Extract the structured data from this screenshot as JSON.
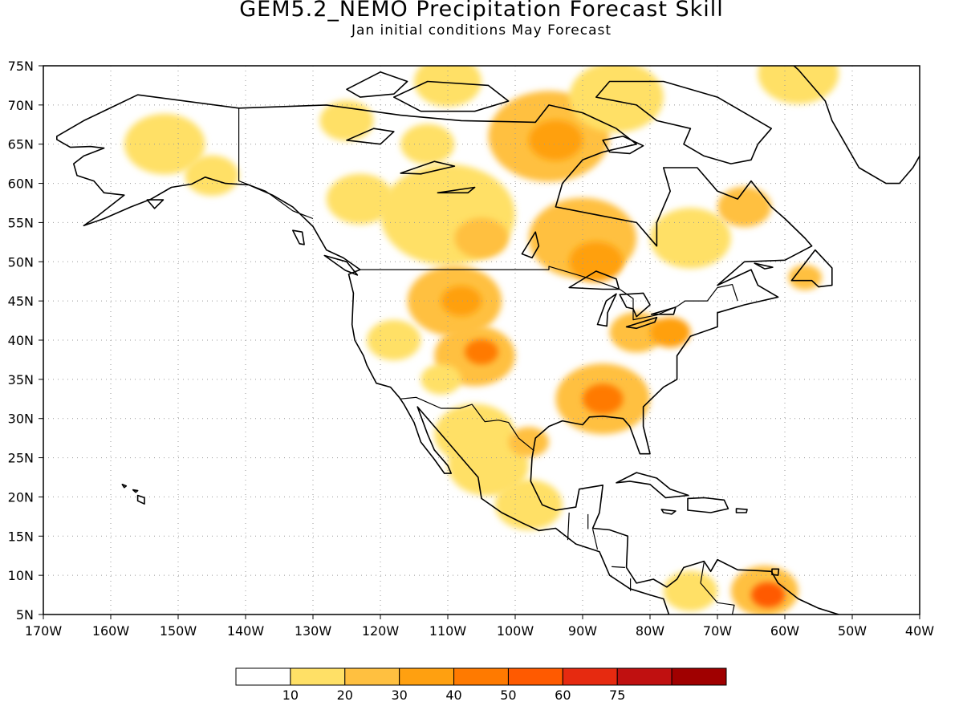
{
  "title": "GEM5.2_NEMO Precipitation Forecast Skill",
  "subtitle": "Jan initial conditions  May Forecast",
  "map": {
    "lon_range": [
      -170,
      -40
    ],
    "lat_range": [
      5,
      75
    ],
    "lat_ticks": [
      "5N",
      "10N",
      "15N",
      "20N",
      "25N",
      "30N",
      "35N",
      "40N",
      "45N",
      "50N",
      "55N",
      "60N",
      "65N",
      "70N",
      "75N"
    ],
    "lon_ticks": [
      "170W",
      "160W",
      "150W",
      "140W",
      "130W",
      "120W",
      "110W",
      "100W",
      "90W",
      "80W",
      "70W",
      "60W",
      "50W",
      "40W"
    ],
    "grid": "dotted",
    "coastline_color": "#000000",
    "skill_regions": [
      {
        "name": "alaska-west",
        "lon": -152,
        "lat": 65,
        "r": 6,
        "level": 1
      },
      {
        "name": "alaska-south",
        "lon": -145,
        "lat": 61,
        "r": 4,
        "level": 1
      },
      {
        "name": "yukon-north",
        "lon": -125,
        "lat": 68,
        "r": 4,
        "level": 1
      },
      {
        "name": "nw-territories",
        "lon": -113,
        "lat": 65,
        "r": 4,
        "level": 1
      },
      {
        "name": "keewatin",
        "lon": -95,
        "lat": 66,
        "r": 9,
        "level": 2
      },
      {
        "name": "keewatin-core",
        "lon": -94,
        "lat": 65.5,
        "r": 4,
        "level": 3
      },
      {
        "name": "arctic-islands",
        "lon": -85,
        "lat": 71,
        "r": 7,
        "level": 1
      },
      {
        "name": "arctic-north",
        "lon": -110,
        "lat": 73,
        "r": 5,
        "level": 1
      },
      {
        "name": "greenland-east",
        "lon": -58,
        "lat": 74,
        "r": 6,
        "level": 1
      },
      {
        "name": "bc-north",
        "lon": -123,
        "lat": 58,
        "r": 5,
        "level": 1
      },
      {
        "name": "alberta",
        "lon": -110,
        "lat": 56,
        "r": 10,
        "level": 1
      },
      {
        "name": "alberta-core",
        "lon": -105,
        "lat": 53,
        "r": 4,
        "level": 2
      },
      {
        "name": "manitoba-ont",
        "lon": -90,
        "lat": 53,
        "r": 8,
        "level": 2
      },
      {
        "name": "ontario-core",
        "lon": -88,
        "lat": 50,
        "r": 4,
        "level": 3
      },
      {
        "name": "quebec",
        "lon": -74,
        "lat": 53,
        "r": 6,
        "level": 1
      },
      {
        "name": "labrador",
        "lon": -66,
        "lat": 57,
        "r": 4,
        "level": 2
      },
      {
        "name": "newfoundland",
        "lon": -57,
        "lat": 48,
        "r": 2.5,
        "level": 2
      },
      {
        "name": "montana",
        "lon": -109,
        "lat": 45,
        "r": 7,
        "level": 2
      },
      {
        "name": "montana-core",
        "lon": -108,
        "lat": 45,
        "r": 3,
        "level": 3
      },
      {
        "name": "colorado",
        "lon": -106,
        "lat": 38,
        "r": 6,
        "level": 2
      },
      {
        "name": "colorado-core",
        "lon": -105,
        "lat": 38.5,
        "r": 2.5,
        "level": 4
      },
      {
        "name": "nevada",
        "lon": -118,
        "lat": 40,
        "r": 4,
        "level": 1
      },
      {
        "name": "arizona",
        "lon": -111,
        "lat": 35,
        "r": 3,
        "level": 1
      },
      {
        "name": "great-lakes-east",
        "lon": -82,
        "lat": 41,
        "r": 4,
        "level": 2
      },
      {
        "name": "pennsylvania",
        "lon": -77,
        "lat": 41,
        "r": 3,
        "level": 3
      },
      {
        "name": "southeast",
        "lon": -87,
        "lat": 32.5,
        "r": 7,
        "level": 2
      },
      {
        "name": "alabama-core",
        "lon": -87,
        "lat": 32.5,
        "r": 3,
        "level": 4
      },
      {
        "name": "mexico-north",
        "lon": -106,
        "lat": 28,
        "r": 6,
        "level": 1
      },
      {
        "name": "mexico-central",
        "lon": -104,
        "lat": 24,
        "r": 6,
        "level": 1
      },
      {
        "name": "texas-coast",
        "lon": -98,
        "lat": 27,
        "r": 3,
        "level": 2
      },
      {
        "name": "mexico-south",
        "lon": -98,
        "lat": 19,
        "r": 5,
        "level": 1
      },
      {
        "name": "colombia",
        "lon": -74,
        "lat": 8,
        "r": 4,
        "level": 1
      },
      {
        "name": "venezuela",
        "lon": -63,
        "lat": 8,
        "r": 5,
        "level": 2
      },
      {
        "name": "venezuela-core",
        "lon": -62.5,
        "lat": 7.5,
        "r": 2.5,
        "level": 5
      }
    ]
  },
  "colorbar": {
    "colors": [
      "#ffffff",
      "#ffe066",
      "#ffc040",
      "#ffa010",
      "#ff7a00",
      "#ff5a00",
      "#e62a10",
      "#c01010",
      "#a00000"
    ],
    "labels": [
      "10",
      "20",
      "30",
      "40",
      "50",
      "60",
      "75"
    ]
  }
}
